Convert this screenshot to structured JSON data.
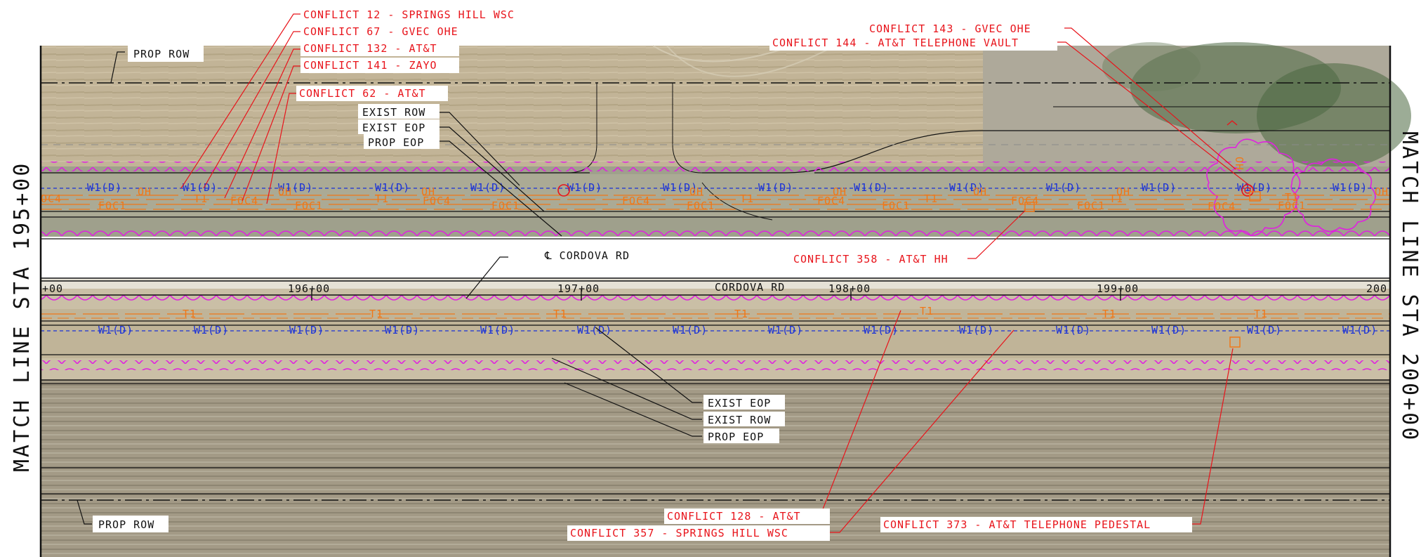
{
  "drawing": {
    "match_left": "MATCH LINE STA 195+00",
    "match_right": "MATCH LINE STA 200+00",
    "road_name": "CORDOVA RD",
    "centerline_label": "℄ CORDOVA RD"
  },
  "stations": [
    "+00",
    "196+00",
    "197+00",
    "198+00",
    "199+00",
    "200"
  ],
  "row_labels": {
    "prop_row_top": "PROP ROW",
    "prop_row_bottom": "PROP ROW",
    "exist_row_top": "EXIST ROW",
    "exist_eop_top": "EXIST EOP",
    "prop_eop_top": "PROP EOP",
    "exist_eop_bottom": "EXIST EOP",
    "exist_row_bottom": "EXIST ROW",
    "prop_eop_bottom": "PROP EOP"
  },
  "conflicts": {
    "c12": "CONFLICT 12 - SPRINGS HILL WSC",
    "c67": "CONFLICT 67 - GVEC OHE",
    "c132": "CONFLICT 132 - AT&T",
    "c141": "CONFLICT 141 - ZAYO",
    "c62": "CONFLICT 62 - AT&T",
    "c143": "CONFLICT 143 - GVEC OHE",
    "c144": "CONFLICT 144 - AT&T TELEPHONE VAULT",
    "c358": "CONFLICT 358 - AT&T HH",
    "c128": "CONFLICT 128 - AT&T",
    "c357": "CONFLICT 357 - SPRINGS HILL WSC",
    "c373": "CONFLICT 373 - AT&T TELEPHONE PEDESTAL"
  },
  "utility_codes": {
    "water": "W1(D)",
    "overhead": "OH",
    "telephone": "T1",
    "fiber1": "FOC1",
    "fiber4": "FOC4",
    "fiber4_edge": "OC4"
  },
  "colors": {
    "conflict": "#e8141b",
    "water_line": "#1a32d8",
    "telecom_line": "#f07818",
    "clearance_cloud": "#e020e0",
    "linework": "#111111"
  }
}
